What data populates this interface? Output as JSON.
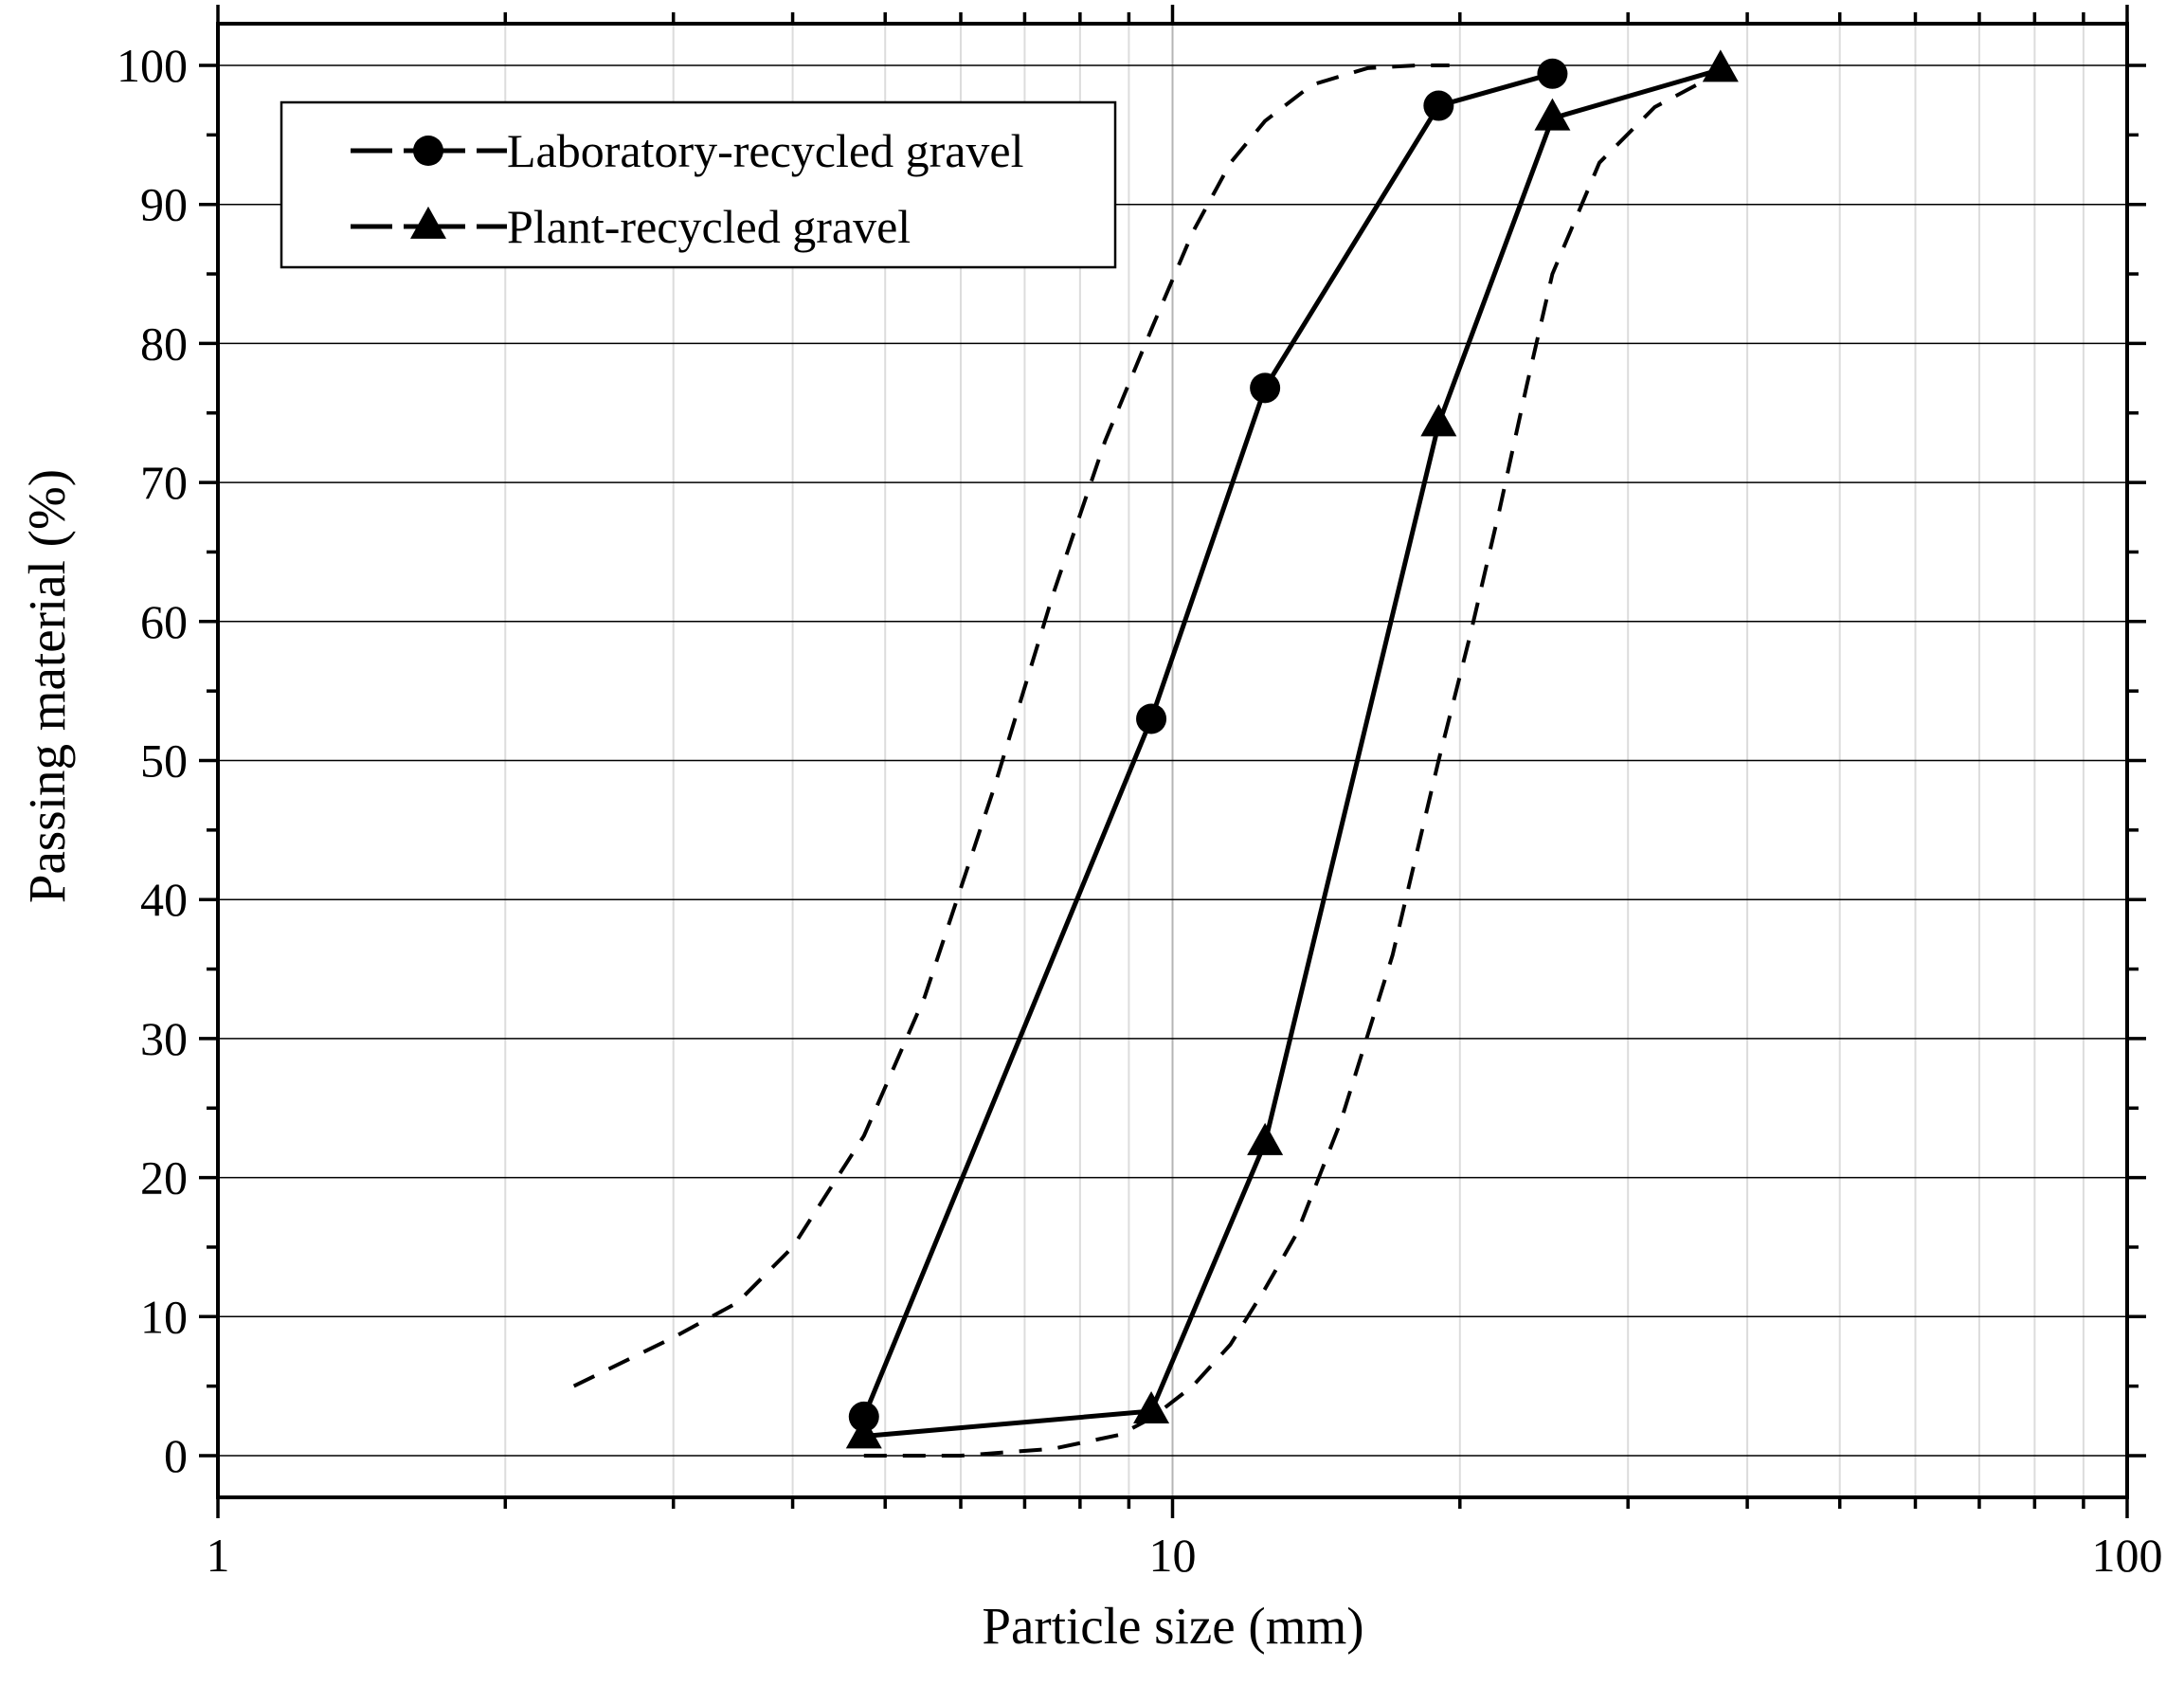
{
  "chart_data": {
    "type": "line",
    "xlabel": "Particle size (mm)",
    "ylabel": "Passing material (%)",
    "xscale": "log",
    "xlim": [
      1,
      100
    ],
    "ylim": [
      -3,
      103
    ],
    "xticks": [
      1,
      10,
      100
    ],
    "xtick_labels": [
      "1",
      "10",
      "100"
    ],
    "yticks": [
      0,
      10,
      20,
      30,
      40,
      50,
      60,
      70,
      80,
      90,
      100
    ],
    "ytick_labels": [
      "0",
      "10",
      "20",
      "30",
      "40",
      "50",
      "60",
      "70",
      "80",
      "90",
      "100"
    ],
    "grid": true,
    "legend_position": "top-left",
    "series": [
      {
        "name": "Laboratory-recycled gravel",
        "marker": "circle",
        "line": "solid",
        "x": [
          4.75,
          9.5,
          12.5,
          19,
          25
        ],
        "y": [
          2.8,
          53,
          76.8,
          97.1,
          99.4
        ]
      },
      {
        "name": "Plant-recycled gravel",
        "marker": "triangle",
        "line": "solid",
        "x": [
          4.75,
          9.5,
          12.5,
          19,
          25,
          37.5
        ],
        "y": [
          1.4,
          3.2,
          22.5,
          74.2,
          96.2,
          99.7
        ]
      },
      {
        "line": "dashed",
        "x": [
          2.36,
          3,
          3.5,
          4,
          4.75,
          5.5,
          6.5,
          7.5,
          8.5,
          9.5,
          10.5,
          11.5,
          12.5,
          14,
          16,
          18,
          19.5
        ],
        "y": [
          5,
          8.5,
          11,
          15,
          23,
          33,
          48,
          62,
          73,
          81,
          88,
          93,
          96,
          98.6,
          99.8,
          100,
          100
        ]
      },
      {
        "line": "dashed",
        "x": [
          4.75,
          6,
          7.5,
          8.8,
          9.5,
          10.5,
          11.5,
          12.5,
          13.5,
          15,
          17,
          19,
          20.5,
          22,
          23.5,
          25,
          28,
          32,
          37.5
        ],
        "y": [
          0,
          0,
          0.5,
          1.5,
          2.7,
          5,
          8,
          12,
          16,
          24,
          36,
          50,
          59,
          68,
          77,
          85,
          93,
          97,
          99.5
        ]
      }
    ]
  }
}
